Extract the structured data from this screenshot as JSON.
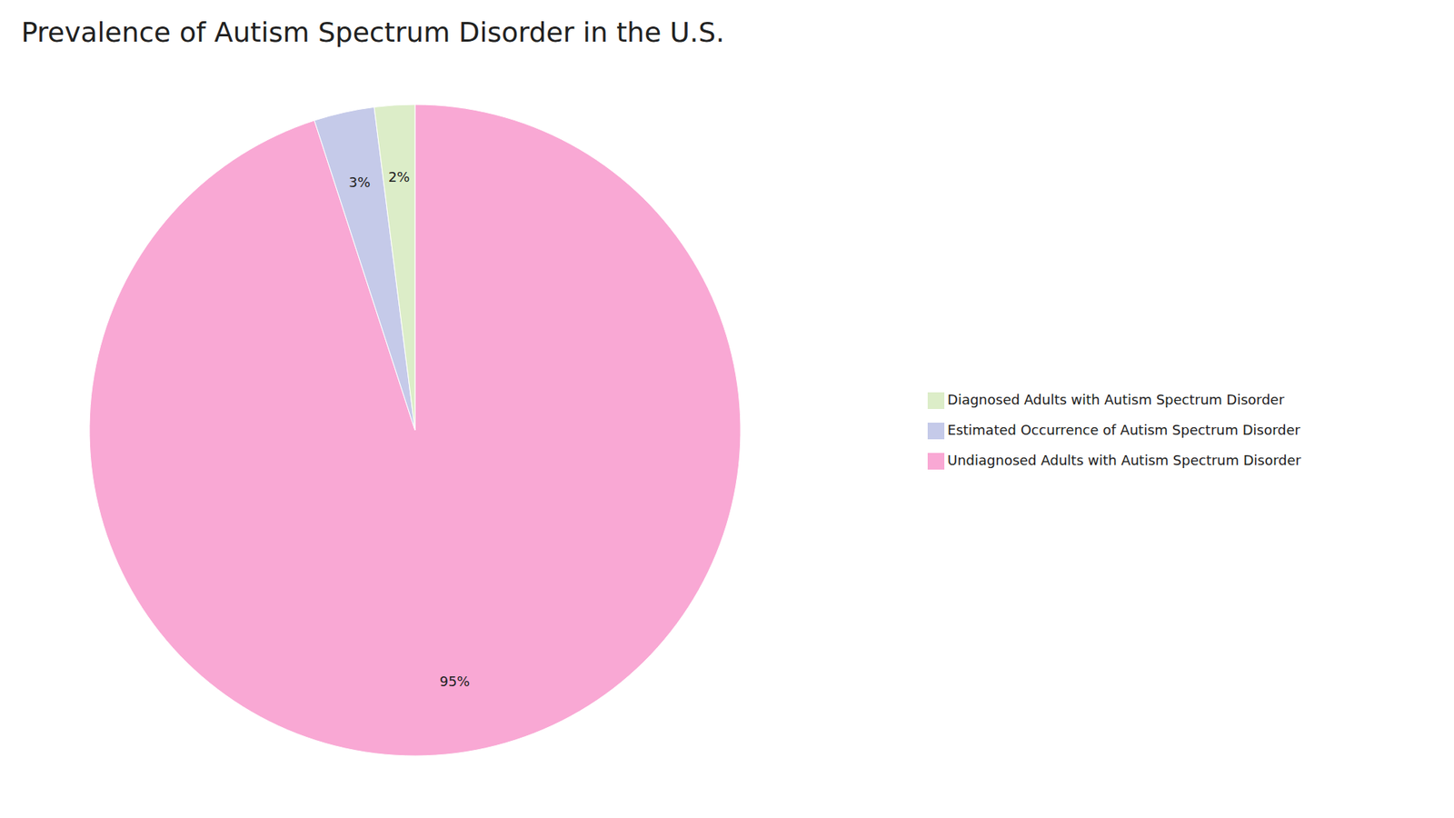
{
  "chart_data": {
    "type": "pie",
    "title": "Prevalence of Autism Spectrum Disorder in the U.S.",
    "categories": [
      "Undiagnosed Adults with Autism Spectrum Disorder",
      "Estimated Occurrence of Autism Spectrum Disorder",
      "Diagnosed Adults with Autism Spectrum Disorder"
    ],
    "values": [
      95,
      3,
      2
    ],
    "value_labels": [
      "95%",
      "3%",
      "2%"
    ],
    "colors": [
      "#F9A8D4",
      "#C5CAE9",
      "#DCEDC8"
    ],
    "data_labels": true,
    "legend": "right"
  }
}
